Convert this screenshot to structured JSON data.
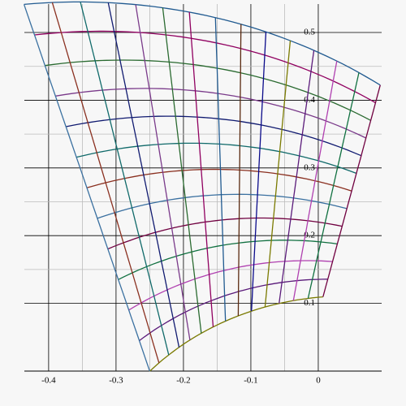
{
  "chart_data": {
    "type": "mesh",
    "xlim": [
      -0.436,
      0.094
    ],
    "ylim": [
      0,
      0.542
    ],
    "xticks": [
      -0.4,
      -0.3,
      -0.2,
      -0.1,
      0
    ],
    "yticks": [
      0.1,
      0.2,
      0.3,
      0.4,
      0.5
    ],
    "grid": true
  }
}
